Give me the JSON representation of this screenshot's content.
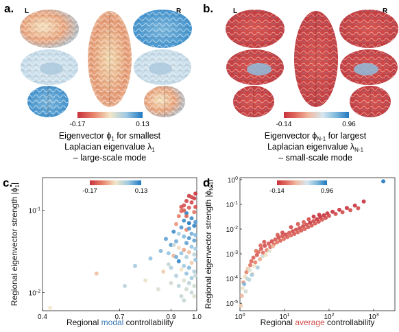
{
  "panels": {
    "a": {
      "letter": "a.",
      "hemi_left": "L",
      "hemi_right": "R",
      "colorbar": {
        "min_label": "-0.17",
        "max_label": "0.13"
      },
      "caption": {
        "line1_pre": "Eigenvector ",
        "line1_sym": "ϕ",
        "line1_sub": "1",
        "line1_post": " for smallest",
        "line2_pre": "Laplacian eigenvalue ",
        "line2_sym": "λ",
        "line2_sub": "1",
        "line3": "– large-scale mode"
      },
      "colors": {
        "low": "#d13a3a",
        "mid": "#f2ead2",
        "high": "#2a82c9"
      }
    },
    "b": {
      "letter": "b.",
      "hemi_left": "L",
      "hemi_right": "R",
      "colorbar": {
        "min_label": "-0.14",
        "max_label": "0.96"
      },
      "caption": {
        "line1_pre": "Eigenvector ",
        "line1_sym": "ϕ",
        "line1_sub": "N-1",
        "line1_post": " for largest",
        "line2_pre": "Laplacian eigenvalue ",
        "line2_sym": "λ",
        "line2_sub": "N-1",
        "line3": "– small-scale mode"
      }
    },
    "c": {
      "letter": "c.",
      "colorbar": {
        "min_label": "-0.17",
        "max_label": "0.13"
      }
    },
    "d": {
      "letter": "d.",
      "colorbar": {
        "min_label": "-0.14",
        "max_label": "0.96"
      }
    }
  },
  "chart_data": [
    {
      "type": "scatter",
      "panel": "c",
      "xlabel_pre": "Regional ",
      "xlabel_accent": "modal",
      "xlabel_post": " controllability",
      "accent_color": "#3a78b8",
      "ylabel_pre": "Regional eigenvector strength |",
      "ylabel_sym": "ϕ",
      "ylabel_sub": "1",
      "ylabel_post": "|",
      "x_scale": "linear",
      "y_scale": "log",
      "xlim": [
        0.4,
        1.0
      ],
      "ylim": [
        0.006,
        0.25
      ],
      "x_ticks": [
        0.4,
        0.7,
        0.9,
        1.0
      ],
      "x_tick_labels": [
        "0.4",
        "0.7",
        "0.9",
        "1.0"
      ],
      "y_ticks": [
        0.01,
        0.1
      ],
      "y_tick_exponents": [
        "-2",
        "-1"
      ],
      "y_tick_base": "10",
      "points": [
        [
          0.43,
          0.0065,
          -0.02
        ],
        [
          0.61,
          0.017,
          -0.05
        ],
        [
          0.72,
          0.012,
          0.03
        ],
        [
          0.76,
          0.021,
          0.05
        ],
        [
          0.8,
          0.014,
          -0.01
        ],
        [
          0.82,
          0.026,
          0.06
        ],
        [
          0.85,
          0.011,
          0.0
        ],
        [
          0.86,
          0.032,
          0.07
        ],
        [
          0.87,
          0.018,
          -0.04
        ],
        [
          0.88,
          0.045,
          0.09
        ],
        [
          0.89,
          0.022,
          0.02
        ],
        [
          0.9,
          0.038,
          0.1
        ],
        [
          0.9,
          0.013,
          0.01
        ],
        [
          0.91,
          0.055,
          0.11
        ],
        [
          0.91,
          0.028,
          -0.06
        ],
        [
          0.92,
          0.068,
          -0.08
        ],
        [
          0.92,
          0.016,
          0.04
        ],
        [
          0.92,
          0.042,
          0.08
        ],
        [
          0.93,
          0.085,
          -0.1
        ],
        [
          0.93,
          0.024,
          0.12
        ],
        [
          0.93,
          0.035,
          -0.03
        ],
        [
          0.93,
          0.012,
          0.03
        ],
        [
          0.94,
          0.098,
          -0.12
        ],
        [
          0.94,
          0.062,
          0.1
        ],
        [
          0.94,
          0.03,
          0.06
        ],
        [
          0.94,
          0.019,
          -0.02
        ],
        [
          0.94,
          0.009,
          0.02
        ],
        [
          0.95,
          0.115,
          -0.14
        ],
        [
          0.95,
          0.075,
          0.11
        ],
        [
          0.95,
          0.048,
          0.07
        ],
        [
          0.95,
          0.033,
          -0.07
        ],
        [
          0.95,
          0.021,
          0.05
        ],
        [
          0.95,
          0.014,
          0.0
        ],
        [
          0.95,
          0.008,
          0.02
        ],
        [
          0.96,
          0.13,
          -0.15
        ],
        [
          0.96,
          0.092,
          0.12
        ],
        [
          0.96,
          0.058,
          -0.09
        ],
        [
          0.96,
          0.04,
          0.09
        ],
        [
          0.96,
          0.027,
          0.04
        ],
        [
          0.96,
          0.017,
          0.06
        ],
        [
          0.96,
          0.011,
          0.01
        ],
        [
          0.97,
          0.15,
          -0.16
        ],
        [
          0.97,
          0.108,
          -0.13
        ],
        [
          0.97,
          0.07,
          0.13
        ],
        [
          0.97,
          0.046,
          0.1
        ],
        [
          0.97,
          0.031,
          -0.05
        ],
        [
          0.97,
          0.02,
          0.07
        ],
        [
          0.97,
          0.013,
          0.03
        ],
        [
          0.98,
          0.125,
          -0.15
        ],
        [
          0.98,
          0.08,
          0.11
        ],
        [
          0.98,
          0.052,
          0.08
        ],
        [
          0.98,
          0.036,
          0.06
        ],
        [
          0.98,
          0.023,
          -0.04
        ],
        [
          0.98,
          0.015,
          0.05
        ],
        [
          0.98,
          0.01,
          0.02
        ],
        [
          0.99,
          0.14,
          -0.16
        ],
        [
          0.99,
          0.095,
          -0.11
        ],
        [
          0.99,
          0.065,
          0.12
        ],
        [
          0.99,
          0.043,
          0.09
        ],
        [
          0.99,
          0.029,
          0.03
        ],
        [
          0.99,
          0.018,
          0.04
        ],
        [
          0.99,
          0.012,
          0.01
        ],
        [
          0.99,
          0.009,
          0.0
        ],
        [
          0.995,
          0.16,
          -0.17
        ],
        [
          0.995,
          0.11,
          -0.14
        ],
        [
          0.995,
          0.072,
          0.1
        ],
        [
          0.995,
          0.05,
          0.07
        ],
        [
          0.995,
          0.034,
          0.05
        ],
        [
          0.995,
          0.025,
          0.06
        ],
        [
          0.995,
          0.016,
          0.02
        ],
        [
          0.96,
          0.085,
          -0.12
        ],
        [
          0.94,
          0.11,
          -0.14
        ],
        [
          0.93,
          0.052,
          0.05
        ],
        [
          0.92,
          0.027,
          0.08
        ],
        [
          0.97,
          0.06,
          0.1
        ],
        [
          0.98,
          0.145,
          -0.15
        ],
        [
          0.95,
          0.1,
          -0.13
        ],
        [
          0.91,
          0.038,
          0.02
        ],
        [
          0.9,
          0.02,
          0.04
        ],
        [
          0.89,
          0.03,
          0.06
        ]
      ]
    },
    {
      "type": "scatter",
      "panel": "d",
      "xlabel_pre": "Regional ",
      "xlabel_accent": "average",
      "xlabel_post": " controllability",
      "accent_color": "#d14b4b",
      "ylabel_pre": "Regional eigenvector strength |",
      "ylabel_sym": "ϕ",
      "ylabel_sub": "N-1",
      "ylabel_post": "|",
      "x_scale": "log",
      "y_scale": "log",
      "xlim": [
        1,
        3000
      ],
      "ylim": [
        5e-06,
        1.2
      ],
      "x_ticks": [
        1,
        10,
        100,
        1000
      ],
      "x_tick_exponents": [
        "0",
        "1",
        "2",
        "3"
      ],
      "y_ticks": [
        1e-05,
        0.0001,
        0.001,
        0.01,
        0.1,
        1
      ],
      "y_tick_exponents": [
        "-5",
        "-4",
        "-3",
        "-2",
        "-1",
        "0"
      ],
      "tick_base": "10",
      "points": [
        [
          1.05,
          8e-06,
          0.1
        ],
        [
          1.1,
          2e-05,
          0.05
        ],
        [
          1.15,
          4e-05,
          0.2
        ],
        [
          1.2,
          7e-05,
          -0.02
        ],
        [
          1.3,
          0.00012,
          0.15
        ],
        [
          1.35,
          3e-05,
          0.3
        ],
        [
          1.4,
          0.00018,
          -0.05
        ],
        [
          1.5,
          0.00025,
          0.08
        ],
        [
          1.6,
          9e-05,
          0.4
        ],
        [
          1.7,
          0.00035,
          -0.08
        ],
        [
          1.8,
          0.0005,
          -0.1
        ],
        [
          1.9,
          0.00015,
          0.12
        ],
        [
          2.0,
          0.0007,
          -0.11
        ],
        [
          2.2,
          0.00045,
          -0.06
        ],
        [
          2.4,
          0.0009,
          -0.12
        ],
        [
          2.6,
          0.0012,
          -0.1
        ],
        [
          2.8,
          0.0006,
          0.02
        ],
        [
          3.0,
          0.0016,
          -0.12
        ],
        [
          3.3,
          0.0011,
          -0.09
        ],
        [
          3.6,
          0.0021,
          -0.13
        ],
        [
          4.0,
          0.0014,
          -0.07
        ],
        [
          4.4,
          0.0026,
          -0.12
        ],
        [
          4.8,
          0.0019,
          -0.11
        ],
        [
          5.2,
          0.0032,
          -0.13
        ],
        [
          5.7,
          0.0024,
          -0.1
        ],
        [
          6.2,
          0.0038,
          -0.12
        ],
        [
          6.8,
          0.0029,
          -0.08
        ],
        [
          7.4,
          0.0045,
          -0.13
        ],
        [
          8.1,
          0.0034,
          -0.11
        ],
        [
          8.9,
          0.0052,
          -0.12
        ],
        [
          9.7,
          0.004,
          -0.09
        ],
        [
          10.6,
          0.006,
          -0.13
        ],
        [
          11.6,
          0.0048,
          -0.11
        ],
        [
          12.7,
          0.007,
          -0.12
        ],
        [
          13.9,
          0.0055,
          -0.1
        ],
        [
          15.2,
          0.0082,
          -0.13
        ],
        [
          16.6,
          0.0064,
          -0.12
        ],
        [
          18.2,
          0.0095,
          -0.13
        ],
        [
          19.9,
          0.0075,
          -0.11
        ],
        [
          21.8,
          0.011,
          -0.13
        ],
        [
          23.8,
          0.0088,
          -0.12
        ],
        [
          26.0,
          0.013,
          -0.13
        ],
        [
          28.5,
          0.01,
          -0.11
        ],
        [
          31.2,
          0.015,
          -0.13
        ],
        [
          34.1,
          0.012,
          -0.12
        ],
        [
          37.3,
          0.018,
          -0.14
        ],
        [
          40.8,
          0.014,
          -0.12
        ],
        [
          44.6,
          0.021,
          -0.13
        ],
        [
          48.8,
          0.017,
          -0.12
        ],
        [
          53.4,
          0.025,
          -0.14
        ],
        [
          58.4,
          0.02,
          -0.13
        ],
        [
          63.9,
          0.03,
          -0.14
        ],
        [
          69.9,
          0.024,
          -0.12
        ],
        [
          76.5,
          0.036,
          -0.14
        ],
        [
          83.7,
          0.028,
          -0.13
        ],
        [
          91.5,
          0.043,
          -0.14
        ],
        [
          100,
          0.034,
          -0.13
        ],
        [
          120,
          0.05,
          -0.14
        ],
        [
          140,
          0.041,
          -0.13
        ],
        [
          170,
          0.06,
          -0.14
        ],
        [
          200,
          0.048,
          -0.13
        ],
        [
          250,
          0.072,
          -0.14
        ],
        [
          300,
          0.058,
          -0.13
        ],
        [
          380,
          0.09,
          -0.14
        ],
        [
          450,
          0.07,
          -0.13
        ],
        [
          600,
          0.13,
          -0.14
        ],
        [
          1.25,
          6e-05,
          0.6
        ],
        [
          1.45,
          0.0001,
          0.35
        ],
        [
          1.65,
          0.00022,
          0.25
        ],
        [
          1.85,
          0.00014,
          0.5
        ],
        [
          2.1,
          0.00032,
          0.18
        ],
        [
          2.5,
          0.00028,
          0.45
        ],
        [
          3.2,
          0.0008,
          0.3
        ],
        [
          3.8,
          0.0009,
          0.15
        ],
        [
          4.6,
          0.0013,
          0.22
        ],
        [
          5.5,
          0.002,
          0.05
        ],
        [
          2.3,
          0.0013,
          -0.08
        ],
        [
          2.9,
          0.0022,
          -0.1
        ],
        [
          3.5,
          0.003,
          -0.12
        ],
        [
          7.0,
          0.0058,
          -0.12
        ],
        [
          9.0,
          0.0072,
          -0.13
        ],
        [
          14.0,
          0.012,
          -0.13
        ],
        [
          20.0,
          0.016,
          -0.12
        ],
        [
          27.0,
          0.019,
          -0.12
        ],
        [
          35.0,
          0.025,
          -0.13
        ],
        [
          45.0,
          0.032,
          -0.14
        ],
        [
          60.0,
          0.038,
          -0.14
        ],
        [
          1650,
          0.85,
          0.96
        ]
      ]
    }
  ]
}
